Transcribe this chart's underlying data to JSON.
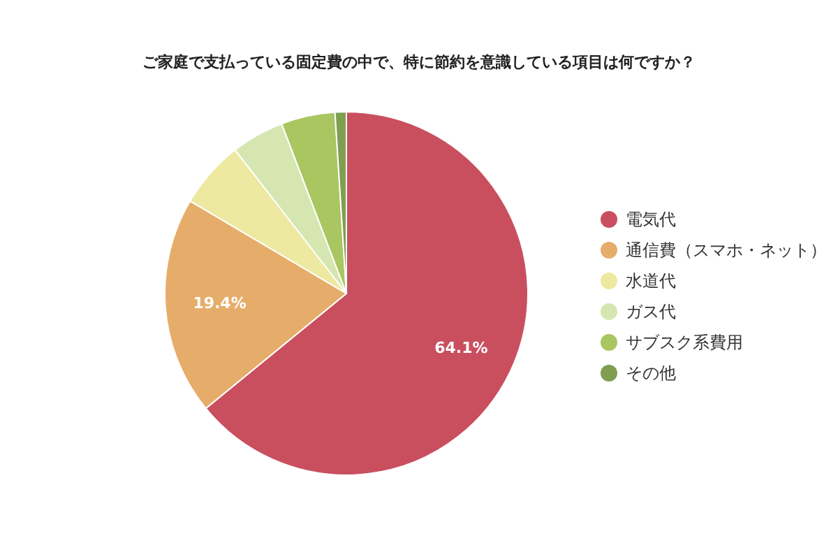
{
  "chart_data": {
    "type": "pie",
    "title": "ご家庭で支払っている固定費の中で、特に節約を意識している項目は何ですか？",
    "categories": [
      "電気代",
      "通信費（スマホ・ネット）",
      "水道代",
      "ガス代",
      "サブスク系費用",
      "その他"
    ],
    "values": [
      64.1,
      19.4,
      6.0,
      4.7,
      4.8,
      1.0
    ],
    "colors": [
      "#c94f5f",
      "#e6ad6a",
      "#ede9a0",
      "#d6e6b1",
      "#a9c661",
      "#7f9e4f"
    ],
    "value_labels": [
      "64.1%",
      "19.4%",
      null,
      null,
      null,
      null
    ],
    "legend": "right"
  }
}
